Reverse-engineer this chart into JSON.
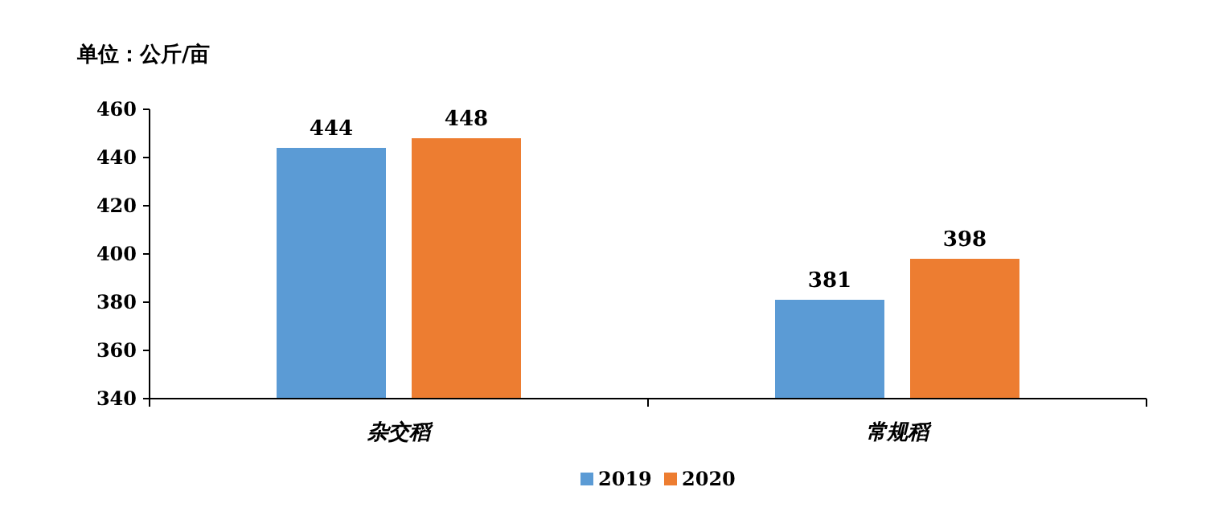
{
  "chart_data": {
    "type": "bar",
    "ylabel": "单位：公斤/亩",
    "categories": [
      "杂交稻",
      "常规稻"
    ],
    "series": [
      {
        "name": "2019",
        "color": "#5b9bd5",
        "values": [
          444,
          381
        ]
      },
      {
        "name": "2020",
        "color": "#ed7d31",
        "values": [
          448,
          398
        ]
      }
    ],
    "ylim": [
      340,
      460
    ],
    "yticks": [
      340,
      360,
      380,
      400,
      420,
      440,
      460
    ],
    "data_labels": true,
    "legend": "bottom"
  }
}
